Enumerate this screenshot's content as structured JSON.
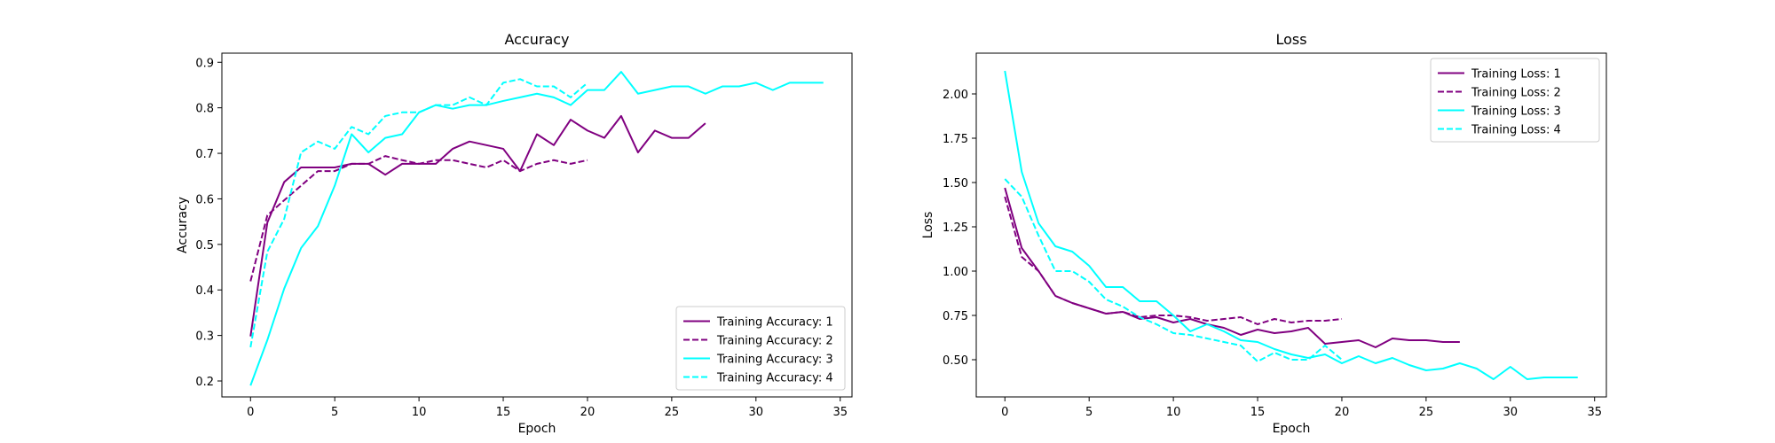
{
  "colors": {
    "purple": "#800080",
    "cyan": "#00ffff",
    "axis": "#000000",
    "legend_border": "#cccccc"
  },
  "chart_data": [
    {
      "type": "line",
      "title": "Accuracy",
      "xlabel": "Epoch",
      "ylabel": "Accuracy",
      "xlim": [
        -1.7,
        35.7
      ],
      "ylim": [
        0.165,
        0.92
      ],
      "xticks": [
        0,
        5,
        10,
        15,
        20,
        25,
        30,
        35
      ],
      "yticks": [
        0.2,
        0.3,
        0.4,
        0.5,
        0.6,
        0.7,
        0.8,
        0.9
      ],
      "ytick_labels": [
        "0.2",
        "0.3",
        "0.4",
        "0.5",
        "0.6",
        "0.7",
        "0.8",
        "0.9"
      ],
      "grid": false,
      "legend_position": "lower-right",
      "series": [
        {
          "name": "Training Accuracy: 1",
          "color": "#800080",
          "dash": "solid",
          "x": [
            0,
            1,
            2,
            3,
            4,
            5,
            6,
            7,
            8,
            9,
            10,
            11,
            12,
            13,
            14,
            15,
            16,
            17,
            18,
            19,
            20,
            21,
            22,
            23,
            24,
            25,
            26,
            27
          ],
          "y": [
            0.298,
            0.548,
            0.637,
            0.669,
            0.669,
            0.669,
            0.677,
            0.677,
            0.653,
            0.677,
            0.677,
            0.677,
            0.71,
            0.726,
            0.718,
            0.71,
            0.661,
            0.742,
            0.718,
            0.774,
            0.75,
            0.734,
            0.782,
            0.702,
            0.75,
            0.734,
            0.734,
            0.766
          ]
        },
        {
          "name": "Training Accuracy: 2",
          "color": "#800080",
          "dash": "dashed",
          "x": [
            0,
            1,
            2,
            3,
            4,
            5,
            6,
            7,
            8,
            9,
            10,
            11,
            12,
            13,
            14,
            15,
            16,
            17,
            18,
            19,
            20
          ],
          "y": [
            0.419,
            0.564,
            0.597,
            0.629,
            0.661,
            0.661,
            0.677,
            0.677,
            0.694,
            0.685,
            0.677,
            0.685,
            0.685,
            0.677,
            0.669,
            0.685,
            0.661,
            0.677,
            0.685,
            0.677,
            0.685
          ]
        },
        {
          "name": "Training Accuracy: 3",
          "color": "#00ffff",
          "dash": "solid",
          "x": [
            0,
            1,
            2,
            3,
            4,
            5,
            6,
            7,
            8,
            9,
            10,
            11,
            12,
            13,
            14,
            15,
            16,
            17,
            18,
            19,
            20,
            21,
            22,
            23,
            24,
            25,
            26,
            27,
            28,
            29,
            30,
            31,
            32,
            33,
            34
          ],
          "y": [
            0.19,
            0.29,
            0.403,
            0.492,
            0.54,
            0.629,
            0.742,
            0.702,
            0.734,
            0.742,
            0.79,
            0.806,
            0.798,
            0.806,
            0.806,
            0.815,
            0.823,
            0.831,
            0.823,
            0.806,
            0.839,
            0.839,
            0.879,
            0.831,
            0.839,
            0.847,
            0.847,
            0.831,
            0.847,
            0.847,
            0.855,
            0.839,
            0.855,
            0.855,
            0.855
          ]
        },
        {
          "name": "Training Accuracy: 4",
          "color": "#00ffff",
          "dash": "dashed",
          "x": [
            0,
            1,
            2,
            3,
            4,
            5,
            6,
            7,
            8,
            9,
            10,
            11,
            12,
            13,
            14,
            15,
            16,
            17,
            18,
            19,
            20
          ],
          "y": [
            0.274,
            0.484,
            0.556,
            0.702,
            0.726,
            0.71,
            0.758,
            0.742,
            0.782,
            0.79,
            0.79,
            0.806,
            0.806,
            0.823,
            0.806,
            0.855,
            0.863,
            0.847,
            0.847,
            0.823,
            0.855
          ]
        }
      ]
    },
    {
      "type": "line",
      "title": "Loss",
      "xlabel": "Epoch",
      "ylabel": "Loss",
      "xlim": [
        -1.7,
        35.7
      ],
      "ylim": [
        0.29,
        2.23
      ],
      "xticks": [
        0,
        5,
        10,
        15,
        20,
        25,
        30,
        35
      ],
      "yticks": [
        0.5,
        0.75,
        1.0,
        1.25,
        1.5,
        1.75,
        2.0
      ],
      "ytick_labels": [
        "0.50",
        "0.75",
        "1.00",
        "1.25",
        "1.50",
        "1.75",
        "2.00"
      ],
      "grid": false,
      "legend_position": "upper-right",
      "series": [
        {
          "name": "Training Loss: 1",
          "color": "#800080",
          "dash": "solid",
          "x": [
            0,
            1,
            2,
            3,
            4,
            5,
            6,
            7,
            8,
            9,
            10,
            11,
            12,
            13,
            14,
            15,
            16,
            17,
            18,
            19,
            20,
            21,
            22,
            23,
            24,
            25,
            26,
            27
          ],
          "y": [
            1.47,
            1.13,
            1.0,
            0.86,
            0.82,
            0.79,
            0.76,
            0.77,
            0.73,
            0.74,
            0.71,
            0.73,
            0.7,
            0.68,
            0.64,
            0.67,
            0.65,
            0.66,
            0.68,
            0.59,
            0.6,
            0.61,
            0.57,
            0.62,
            0.61,
            0.61,
            0.6,
            0.6
          ]
        },
        {
          "name": "Training Loss: 2",
          "color": "#800080",
          "dash": "dashed",
          "x": [
            0,
            1,
            2,
            3,
            4,
            5,
            6,
            7,
            8,
            9,
            10,
            11,
            12,
            13,
            14,
            15,
            16,
            17,
            18,
            19,
            20
          ],
          "y": [
            1.42,
            1.08,
            1.0,
            0.86,
            0.82,
            0.79,
            0.76,
            0.77,
            0.74,
            0.75,
            0.75,
            0.74,
            0.72,
            0.73,
            0.74,
            0.7,
            0.73,
            0.71,
            0.72,
            0.72,
            0.73
          ]
        },
        {
          "name": "Training Loss: 3",
          "color": "#00ffff",
          "dash": "solid",
          "x": [
            0,
            1,
            2,
            3,
            4,
            5,
            6,
            7,
            8,
            9,
            10,
            11,
            12,
            13,
            14,
            15,
            16,
            17,
            18,
            19,
            20,
            21,
            22,
            23,
            24,
            25,
            26,
            27,
            28,
            29,
            30,
            31,
            32,
            33,
            34
          ],
          "y": [
            2.13,
            1.56,
            1.27,
            1.14,
            1.11,
            1.03,
            0.91,
            0.91,
            0.83,
            0.83,
            0.75,
            0.66,
            0.7,
            0.66,
            0.61,
            0.6,
            0.56,
            0.53,
            0.51,
            0.53,
            0.48,
            0.52,
            0.48,
            0.51,
            0.47,
            0.44,
            0.45,
            0.48,
            0.45,
            0.39,
            0.46,
            0.39,
            0.4,
            0.4,
            0.4
          ]
        },
        {
          "name": "Training Loss: 4",
          "color": "#00ffff",
          "dash": "dashed",
          "x": [
            0,
            1,
            2,
            3,
            4,
            5,
            6,
            7,
            8,
            9,
            10,
            11,
            12,
            13,
            14,
            15,
            16,
            17,
            18,
            19,
            20
          ],
          "y": [
            1.52,
            1.42,
            1.2,
            1.0,
            1.0,
            0.94,
            0.84,
            0.8,
            0.74,
            0.7,
            0.65,
            0.64,
            0.62,
            0.6,
            0.58,
            0.49,
            0.54,
            0.5,
            0.5,
            0.58,
            0.5
          ]
        }
      ]
    }
  ]
}
